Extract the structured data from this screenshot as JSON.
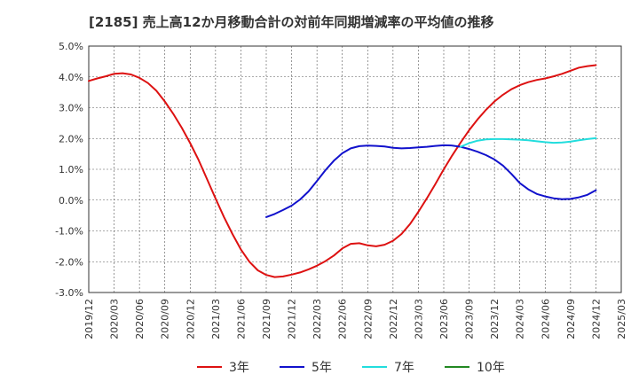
{
  "chart_data": {
    "type": "line",
    "title": "[2185]  売上高12か月移動合計の対前年同期増減率の平均値の推移",
    "xlabel": "",
    "ylabel": "",
    "ylim": [
      -3.0,
      5.0
    ],
    "yticks": [
      "5.0%",
      "4.0%",
      "3.0%",
      "2.0%",
      "1.0%",
      "0.0%",
      "-1.0%",
      "-2.0%",
      "-3.0%"
    ],
    "ytick_values": [
      5,
      4,
      3,
      2,
      1,
      0,
      -1,
      -2,
      -3
    ],
    "xticks": [
      "2019/12",
      "2020/03",
      "2020/06",
      "2020/09",
      "2020/12",
      "2021/03",
      "2021/06",
      "2021/09",
      "2021/12",
      "2022/03",
      "2022/06",
      "2022/09",
      "2022/12",
      "2023/03",
      "2023/06",
      "2023/09",
      "2023/12",
      "2024/03",
      "2024/06",
      "2024/09",
      "2024/12",
      "2025/03"
    ],
    "grid": true,
    "legend_position": "bottom",
    "series": [
      {
        "name": "3年",
        "color": "#dd1111",
        "x": [
          "2019/12",
          "2020/01",
          "2020/02",
          "2020/03",
          "2020/04",
          "2020/05",
          "2020/06",
          "2020/07",
          "2020/08",
          "2020/09",
          "2020/10",
          "2020/11",
          "2020/12",
          "2021/01",
          "2021/02",
          "2021/03",
          "2021/04",
          "2021/05",
          "2021/06",
          "2021/07",
          "2021/08",
          "2021/09",
          "2021/10",
          "2021/11",
          "2021/12",
          "2022/01",
          "2022/02",
          "2022/03",
          "2022/04",
          "2022/05",
          "2022/06",
          "2022/07",
          "2022/08",
          "2022/09",
          "2022/10",
          "2022/11",
          "2022/12",
          "2023/01",
          "2023/02",
          "2023/03",
          "2023/04",
          "2023/05",
          "2023/06",
          "2023/07",
          "2023/08",
          "2023/09",
          "2023/10",
          "2023/11",
          "2023/12",
          "2024/01",
          "2024/02",
          "2024/03",
          "2024/04",
          "2024/05",
          "2024/06",
          "2024/07",
          "2024/08",
          "2024/09",
          "2024/10",
          "2024/11",
          "2024/12"
        ],
        "values": [
          3.87,
          3.95,
          4.02,
          4.1,
          4.12,
          4.08,
          3.97,
          3.8,
          3.55,
          3.2,
          2.8,
          2.35,
          1.85,
          1.3,
          0.68,
          0.05,
          -0.55,
          -1.1,
          -1.6,
          -2.0,
          -2.28,
          -2.43,
          -2.5,
          -2.48,
          -2.42,
          -2.35,
          -2.25,
          -2.13,
          -1.98,
          -1.8,
          -1.57,
          -1.42,
          -1.4,
          -1.47,
          -1.5,
          -1.45,
          -1.32,
          -1.1,
          -0.78,
          -0.38,
          0.06,
          0.52,
          1.0,
          1.45,
          1.87,
          2.27,
          2.62,
          2.93,
          3.2,
          3.42,
          3.6,
          3.73,
          3.83,
          3.9,
          3.95,
          4.02,
          4.1,
          4.2,
          4.3,
          4.35,
          4.38
        ]
      },
      {
        "name": "5年",
        "color": "#1111cc",
        "x": [
          "2021/09",
          "2021/10",
          "2021/11",
          "2021/12",
          "2022/01",
          "2022/02",
          "2022/03",
          "2022/04",
          "2022/05",
          "2022/06",
          "2022/07",
          "2022/08",
          "2022/09",
          "2022/10",
          "2022/11",
          "2022/12",
          "2023/01",
          "2023/02",
          "2023/03",
          "2023/04",
          "2023/05",
          "2023/06",
          "2023/07",
          "2023/08",
          "2023/09",
          "2023/10",
          "2023/11",
          "2023/12",
          "2024/01",
          "2024/02",
          "2024/03",
          "2024/04",
          "2024/05",
          "2024/06",
          "2024/07",
          "2024/08",
          "2024/09",
          "2024/10",
          "2024/11",
          "2024/12"
        ],
        "values": [
          -0.55,
          -0.45,
          -0.32,
          -0.18,
          0.02,
          0.28,
          0.62,
          0.97,
          1.28,
          1.52,
          1.68,
          1.75,
          1.77,
          1.76,
          1.74,
          1.7,
          1.68,
          1.69,
          1.71,
          1.73,
          1.76,
          1.78,
          1.77,
          1.73,
          1.66,
          1.57,
          1.46,
          1.32,
          1.12,
          0.85,
          0.55,
          0.35,
          0.2,
          0.12,
          0.06,
          0.03,
          0.04,
          0.09,
          0.17,
          0.32
        ]
      },
      {
        "name": "7年",
        "color": "#22dddd",
        "x": [
          "2023/08",
          "2023/09",
          "2023/10",
          "2023/11",
          "2023/12",
          "2024/01",
          "2024/02",
          "2024/03",
          "2024/04",
          "2024/05",
          "2024/06",
          "2024/07",
          "2024/08",
          "2024/09",
          "2024/10",
          "2024/11",
          "2024/12"
        ],
        "values": [
          1.73,
          1.85,
          1.93,
          1.97,
          1.98,
          1.98,
          1.97,
          1.96,
          1.94,
          1.91,
          1.88,
          1.86,
          1.87,
          1.9,
          1.94,
          1.98,
          2.01
        ]
      },
      {
        "name": "10年",
        "color": "#228822",
        "x": [],
        "values": []
      }
    ]
  }
}
